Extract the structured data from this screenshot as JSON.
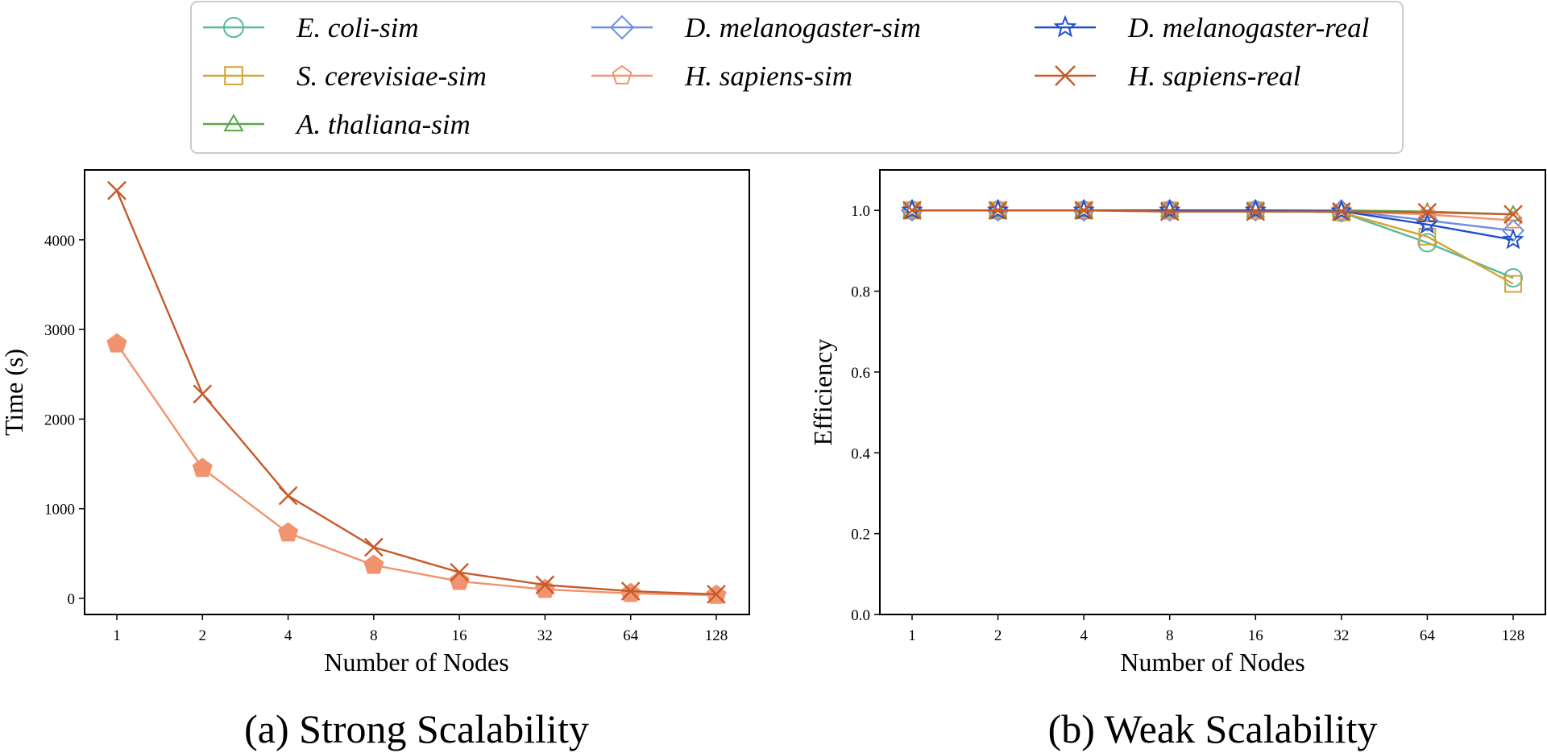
{
  "legend": {
    "items": [
      {
        "key": "ecoli_sim",
        "label": "E. coli-sim",
        "color": "#5bb89a",
        "marker": "circle",
        "filled": false
      },
      {
        "key": "scer_sim",
        "label": "S. cerevisiae-sim",
        "color": "#d4a437",
        "marker": "square",
        "filled": false
      },
      {
        "key": "athal_sim",
        "label": "A. thaliana-sim",
        "color": "#5ba64a",
        "marker": "triangle",
        "filled": false
      },
      {
        "key": "dmel_sim",
        "label": "D. melanogaster-sim",
        "color": "#6f8fe0",
        "marker": "diamond",
        "filled": false
      },
      {
        "key": "hsap_sim",
        "label": "H. sapiens-sim",
        "color": "#f0936e",
        "marker": "pentagon",
        "filled": false
      },
      {
        "key": "dmel_real",
        "label": "D. melanogaster-real",
        "color": "#1f4fc8",
        "marker": "star",
        "filled": false
      },
      {
        "key": "hsap_real",
        "label": "H. sapiens-real",
        "color": "#c65a28",
        "marker": "x",
        "filled": false
      }
    ]
  },
  "chart_data": [
    {
      "type": "line",
      "title": "",
      "caption": "(a) Strong Scalability",
      "xlabel": "Number of Nodes",
      "ylabel": "Time (s)",
      "x": [
        1,
        2,
        4,
        8,
        16,
        32,
        64,
        128
      ],
      "xtick_labels": [
        "1",
        "2",
        "4",
        "8",
        "16",
        "32",
        "64",
        "128"
      ],
      "yticks": [
        0,
        1000,
        2000,
        3000,
        4000
      ],
      "ytick_labels": [
        "0",
        "1000",
        "2000",
        "3000",
        "4000"
      ],
      "ylim": [
        -180,
        4780
      ],
      "series": [
        {
          "key": "hsap_sim",
          "name": "H. sapiens-sim",
          "color": "#f0936e",
          "marker": "pentagon",
          "filled": true,
          "values": [
            2840,
            1450,
            730,
            370,
            190,
            100,
            55,
            35
          ]
        },
        {
          "key": "hsap_real",
          "name": "H. sapiens-real",
          "color": "#c65a28",
          "marker": "x",
          "filled": false,
          "values": [
            4550,
            2280,
            1145,
            570,
            290,
            150,
            80,
            45
          ]
        }
      ]
    },
    {
      "type": "line",
      "title": "",
      "caption": "(b) Weak Scalability",
      "xlabel": "Number of Nodes",
      "ylabel": "Efficiency",
      "x": [
        1,
        2,
        4,
        8,
        16,
        32,
        64,
        128
      ],
      "xtick_labels": [
        "1",
        "2",
        "4",
        "8",
        "16",
        "32",
        "64",
        "128"
      ],
      "yticks": [
        0,
        0.2,
        0.4,
        0.6,
        0.8,
        1.0
      ],
      "ytick_labels": [
        "0.0",
        "0.2",
        "0.4",
        "0.6",
        "0.8",
        "1.0"
      ],
      "ylim": [
        0,
        1.1
      ],
      "series": [
        {
          "key": "ecoli_sim",
          "name": "E. coli-sim",
          "color": "#5bb89a",
          "marker": "circle",
          "filled": false,
          "values": [
            1.0,
            1.0,
            1.0,
            1.0,
            1.0,
            0.995,
            0.92,
            0.833
          ]
        },
        {
          "key": "scer_sim",
          "name": "S. cerevisiae-sim",
          "color": "#d4a437",
          "marker": "square",
          "filled": false,
          "values": [
            1.0,
            1.0,
            1.0,
            1.0,
            1.0,
            0.995,
            0.935,
            0.818
          ]
        },
        {
          "key": "athal_sim",
          "name": "A. thaliana-sim",
          "color": "#5ba64a",
          "marker": "triangle",
          "filled": false,
          "values": [
            1.0,
            1.0,
            1.0,
            1.0,
            1.0,
            1.0,
            0.997,
            0.99
          ]
        },
        {
          "key": "dmel_sim",
          "name": "D. melanogaster-sim",
          "color": "#6f8fe0",
          "marker": "diamond",
          "filled": false,
          "values": [
            1.0,
            1.0,
            1.0,
            1.0,
            1.0,
            1.0,
            0.975,
            0.95
          ]
        },
        {
          "key": "hsap_sim",
          "name": "H. sapiens-sim",
          "color": "#f0936e",
          "marker": "pentagon",
          "filled": false,
          "values": [
            1.0,
            1.0,
            1.0,
            0.997,
            0.997,
            0.997,
            0.99,
            0.975
          ]
        },
        {
          "key": "dmel_real",
          "name": "D. melanogaster-real",
          "color": "#1f4fc8",
          "marker": "star",
          "filled": false,
          "values": [
            1.0,
            1.0,
            1.0,
            1.0,
            1.0,
            0.998,
            0.965,
            0.927
          ]
        },
        {
          "key": "hsap_real",
          "name": "H. sapiens-real",
          "color": "#c65a28",
          "marker": "x",
          "filled": false,
          "values": [
            1.0,
            1.0,
            1.0,
            0.997,
            0.997,
            0.997,
            0.995,
            0.99
          ]
        }
      ]
    }
  ]
}
